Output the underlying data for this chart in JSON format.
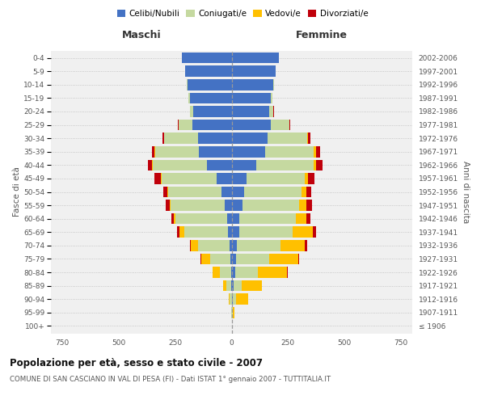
{
  "age_groups": [
    "100+",
    "95-99",
    "90-94",
    "85-89",
    "80-84",
    "75-79",
    "70-74",
    "65-69",
    "60-64",
    "55-59",
    "50-54",
    "45-49",
    "40-44",
    "35-39",
    "30-34",
    "25-29",
    "20-24",
    "15-19",
    "10-14",
    "5-9",
    "0-4"
  ],
  "birth_years": [
    "≤ 1906",
    "1907-1911",
    "1912-1916",
    "1917-1921",
    "1922-1926",
    "1927-1931",
    "1932-1936",
    "1937-1941",
    "1942-1946",
    "1947-1951",
    "1952-1956",
    "1957-1961",
    "1962-1966",
    "1967-1971",
    "1972-1976",
    "1977-1981",
    "1982-1986",
    "1987-1991",
    "1992-1996",
    "1997-2001",
    "2002-2006"
  ],
  "maschi": {
    "celibe": [
      0,
      0,
      0,
      2,
      3,
      5,
      10,
      15,
      18,
      30,
      45,
      65,
      110,
      145,
      150,
      175,
      170,
      185,
      195,
      205,
      220
    ],
    "coniugato": [
      0,
      2,
      8,
      20,
      50,
      90,
      140,
      195,
      230,
      240,
      235,
      245,
      240,
      195,
      150,
      60,
      15,
      5,
      2,
      1,
      0
    ],
    "vedovo": [
      0,
      1,
      5,
      15,
      30,
      40,
      30,
      20,
      8,
      5,
      3,
      2,
      1,
      1,
      0,
      0,
      0,
      0,
      0,
      0,
      0
    ],
    "divorziato": [
      0,
      0,
      0,
      0,
      1,
      2,
      5,
      10,
      12,
      18,
      20,
      30,
      20,
      10,
      5,
      2,
      1,
      0,
      0,
      0,
      0
    ]
  },
  "femmine": {
    "nubile": [
      0,
      2,
      5,
      10,
      15,
      20,
      25,
      35,
      35,
      50,
      55,
      65,
      110,
      150,
      160,
      175,
      165,
      175,
      185,
      195,
      210
    ],
    "coniugata": [
      0,
      2,
      15,
      35,
      100,
      145,
      190,
      235,
      250,
      250,
      255,
      260,
      255,
      215,
      175,
      80,
      20,
      5,
      2,
      0,
      0
    ],
    "vedova": [
      2,
      10,
      55,
      90,
      130,
      130,
      110,
      90,
      45,
      30,
      20,
      15,
      10,
      8,
      5,
      2,
      1,
      0,
      0,
      0,
      0
    ],
    "divorziata": [
      0,
      0,
      0,
      1,
      2,
      5,
      8,
      15,
      18,
      25,
      22,
      28,
      28,
      20,
      10,
      3,
      1,
      0,
      0,
      0,
      0
    ]
  },
  "colors": {
    "celibe": "#4472c4",
    "coniugato": "#c5d9a0",
    "vedovo": "#ffc000",
    "divorziato": "#c0000b"
  },
  "title": "Popolazione per età, sesso e stato civile - 2007",
  "subtitle": "COMUNE DI SAN CASCIANO IN VAL DI PESA (FI) - Dati ISTAT 1° gennaio 2007 - TUTTITALIA.IT",
  "xlabel_left": "Maschi",
  "xlabel_right": "Femmine",
  "ylabel_left": "Fasce di età",
  "ylabel_right": "Anni di nascita",
  "xlim": 800,
  "background_color": "#f0f0f0",
  "legend_labels": [
    "Celibi/Nubili",
    "Coniugati/e",
    "Vedovi/e",
    "Divorziati/e"
  ]
}
